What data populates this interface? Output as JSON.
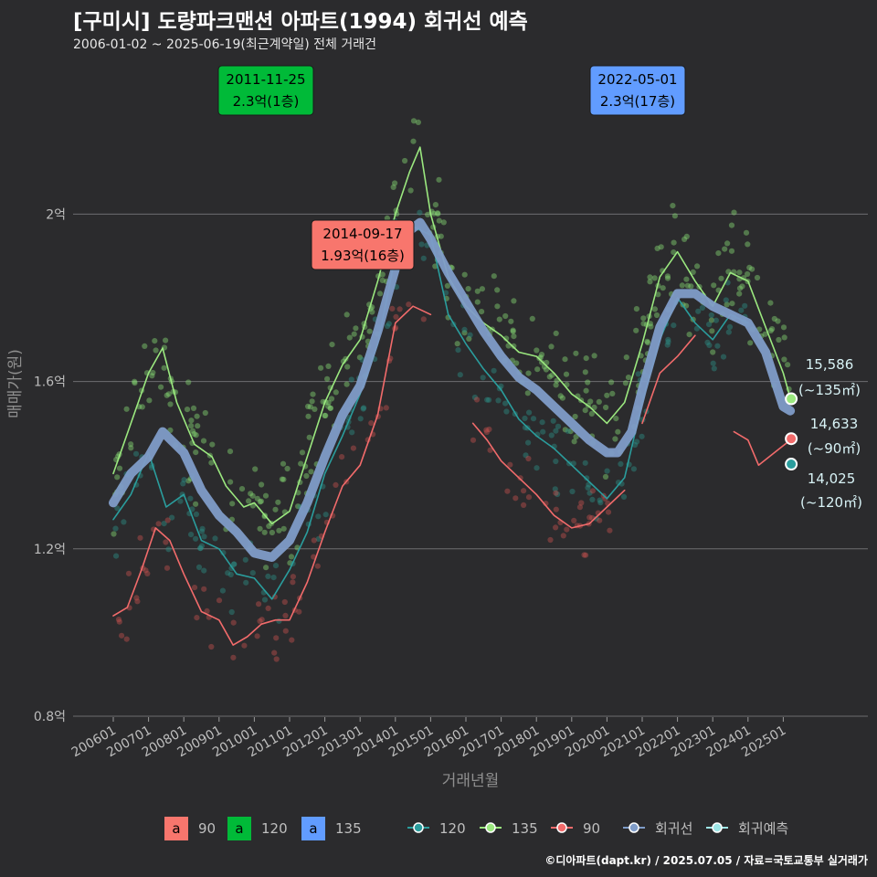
{
  "title": "[구미시] 도량파크맨션 아파트(1994) 회귀선 예측",
  "subtitle": "2006-01-02 ~ 2025-06-19(최근계약일) 전체 거래건",
  "caption": "©디아파트(dapt.kr) / 2025.07.05 / 자료=국토교통부 실거래가",
  "colors": {
    "s90": "#f8766d",
    "s120": "#00ba38",
    "s135": "#619cff",
    "line90": "#f26b6b",
    "line120": "#2a9d9d",
    "line135": "#9be87f",
    "regression": "#7f9cc8",
    "forecast": "#9ee6e6"
  },
  "chart_data": {
    "type": "line",
    "xlabel": "거래년월",
    "ylabel": "매매가(원)",
    "x_ticks": [
      "200601",
      "200701",
      "200801",
      "200901",
      "201001",
      "201101",
      "201201",
      "201301",
      "201401",
      "201501",
      "201601",
      "201701",
      "201801",
      "201901",
      "202001",
      "202101",
      "202201",
      "202301",
      "202401",
      "202501"
    ],
    "y_ticks": [
      {
        "value": 0.8,
        "label": "0.8억"
      },
      {
        "value": 1.2,
        "label": "1.2억"
      },
      {
        "value": 1.6,
        "label": "1.6억"
      },
      {
        "value": 2.0,
        "label": "2억"
      }
    ],
    "ylim": [
      0.8,
      2.0
    ],
    "grid": true,
    "legend_placement": "bottom",
    "scatter_legend": [
      {
        "glyph": "a",
        "label": "90",
        "color_key": "s90"
      },
      {
        "glyph": "a",
        "label": "120",
        "color_key": "s120"
      },
      {
        "glyph": "a",
        "label": "135",
        "color_key": "s135"
      }
    ],
    "line_legend": [
      {
        "label": "120",
        "color_key": "line120"
      },
      {
        "label": "135",
        "color_key": "line135"
      },
      {
        "label": "90",
        "color_key": "line90"
      },
      {
        "label": "회귀선",
        "color_key": "regression"
      },
      {
        "label": "회귀예측",
        "color_key": "forecast"
      }
    ],
    "series": [
      {
        "key": "regression",
        "color_key": "regression",
        "x": [
          2006.0,
          2006.5,
          2007.0,
          2007.4,
          2008.0,
          2008.5,
          2009.0,
          2009.5,
          2010.0,
          2010.5,
          2011.0,
          2011.5,
          2012.0,
          2012.5,
          2013.0,
          2013.5,
          2014.0,
          2014.4,
          2014.7,
          2015.0,
          2015.5,
          2016.0,
          2016.5,
          2017.0,
          2017.5,
          2018.0,
          2018.5,
          2019.0,
          2019.5,
          2020.0,
          2020.3,
          2020.7,
          2021.0,
          2021.5,
          2022.0,
          2022.5,
          2023.0,
          2023.5,
          2024.0,
          2024.5,
          2025.0,
          2025.2
        ],
        "y": [
          1.31,
          1.38,
          1.42,
          1.48,
          1.43,
          1.34,
          1.28,
          1.24,
          1.19,
          1.18,
          1.22,
          1.31,
          1.42,
          1.52,
          1.59,
          1.72,
          1.87,
          1.96,
          1.98,
          1.94,
          1.86,
          1.79,
          1.72,
          1.66,
          1.61,
          1.58,
          1.54,
          1.5,
          1.46,
          1.43,
          1.43,
          1.48,
          1.58,
          1.73,
          1.81,
          1.81,
          1.78,
          1.76,
          1.74,
          1.67,
          1.54,
          1.53
        ]
      },
      {
        "key": "line135",
        "color_key": "line135",
        "x": [
          2006.0,
          2006.5,
          2007.0,
          2007.4,
          2007.8,
          2008.3,
          2008.8,
          2009.2,
          2009.7,
          2010.0,
          2010.5,
          2011.0,
          2011.5,
          2012.0,
          2012.5,
          2013.0,
          2013.5,
          2014.0,
          2014.4,
          2014.7,
          2015.0,
          2015.5,
          2016.0,
          2016.5,
          2017.0,
          2017.5,
          2018.0,
          2018.5,
          2019.0,
          2019.5,
          2020.0,
          2020.5,
          2021.0,
          2021.5,
          2022.0,
          2022.5,
          2023.0,
          2023.5,
          2024.0,
          2024.5,
          2025.0,
          2025.2
        ],
        "y": [
          1.38,
          1.5,
          1.62,
          1.68,
          1.55,
          1.45,
          1.42,
          1.35,
          1.3,
          1.31,
          1.26,
          1.29,
          1.42,
          1.55,
          1.64,
          1.7,
          1.84,
          2.0,
          2.1,
          2.16,
          2.0,
          1.85,
          1.78,
          1.74,
          1.71,
          1.67,
          1.66,
          1.62,
          1.57,
          1.54,
          1.5,
          1.55,
          1.69,
          1.85,
          1.91,
          1.84,
          1.78,
          1.86,
          1.84,
          1.73,
          1.62,
          1.56
        ]
      },
      {
        "key": "line120",
        "color_key": "line120",
        "x": [
          2006.0,
          2006.5,
          2007.0,
          2007.5,
          2008.0,
          2008.5,
          2009.0,
          2009.5,
          2010.0,
          2010.5,
          2011.0,
          2011.5,
          2012.0,
          2012.5,
          2013.0,
          2013.5,
          2014.0,
          2014.5,
          2015.0,
          2015.5,
          2016.0,
          2016.5,
          2017.0,
          2017.5,
          2018.0,
          2018.5,
          2019.0,
          2019.5,
          2020.0,
          2020.5,
          2021.0,
          2021.5,
          2022.0,
          2022.5,
          2023.0,
          2023.5,
          2024.0
        ],
        "y": [
          1.27,
          1.33,
          1.43,
          1.3,
          1.33,
          1.22,
          1.2,
          1.14,
          1.13,
          1.08,
          1.15,
          1.24,
          1.38,
          1.47,
          1.57,
          1.69,
          1.9,
          1.97,
          1.95,
          1.76,
          1.69,
          1.63,
          1.58,
          1.51,
          1.47,
          1.44,
          1.4,
          1.36,
          1.32,
          1.37,
          1.55,
          1.7,
          1.8,
          1.74,
          1.7,
          1.76,
          1.74
        ]
      },
      {
        "key": "line90",
        "color_key": "line90",
        "x": [
          2006.0,
          2006.4,
          2006.8,
          2007.2,
          2007.6,
          2008.0,
          2008.5,
          2009.0,
          2009.4,
          2009.8,
          2010.2,
          2010.6,
          2011.0,
          2011.5,
          2012.0,
          2012.5,
          2013.0,
          2013.5,
          2014.0,
          2014.5,
          2015.0
        ],
        "y": [
          1.04,
          1.06,
          1.15,
          1.25,
          1.22,
          1.14,
          1.05,
          1.03,
          0.97,
          0.99,
          1.02,
          1.03,
          1.03,
          1.12,
          1.24,
          1.35,
          1.4,
          1.52,
          1.74,
          1.78,
          1.76
        ]
      },
      {
        "key": "line90b",
        "color_key": "line90",
        "x": [
          2016.2,
          2016.6,
          2017.0,
          2017.5,
          2018.0,
          2018.5,
          2019.0,
          2019.5,
          2020.0,
          2020.5
        ],
        "y": [
          1.5,
          1.46,
          1.41,
          1.37,
          1.33,
          1.28,
          1.25,
          1.26,
          1.3,
          1.34
        ]
      },
      {
        "key": "line90c",
        "color_key": "line90",
        "x": [
          2021.0,
          2021.5,
          2022.0,
          2022.5
        ],
        "y": [
          1.5,
          1.62,
          1.66,
          1.71
        ]
      },
      {
        "key": "line90d",
        "color_key": "line90",
        "x": [
          2023.6,
          2024.0,
          2024.3,
          2024.6,
          2024.9,
          2025.2
        ],
        "y": [
          1.48,
          1.46,
          1.4,
          1.42,
          1.44,
          1.46
        ]
      }
    ],
    "annotations": [
      {
        "date": "2011-11-25",
        "value_label": "2.3억(1층)",
        "color_key": "s120",
        "x": 2011.9,
        "y": 2.3
      },
      {
        "date": "2014-09-17",
        "value_label": "1.93억(16층)",
        "color_key": "s90",
        "x": 2014.7,
        "y": 1.93
      },
      {
        "date": "2022-05-01",
        "value_label": "2.3억(17층)",
        "color_key": "s135",
        "x": 2022.3,
        "y": 2.3
      }
    ],
    "end_points": [
      {
        "value": "15,586",
        "area": "(~135㎡)",
        "y": 1.5586,
        "color_key": "line135"
      },
      {
        "value": "14,633",
        "area": "(~90㎡)",
        "y": 1.4633,
        "color_key": "line90"
      },
      {
        "value": "14,025",
        "area": "(~120㎡)",
        "y": 1.4025,
        "color_key": "line120"
      }
    ],
    "end_x": 2025.2
  }
}
